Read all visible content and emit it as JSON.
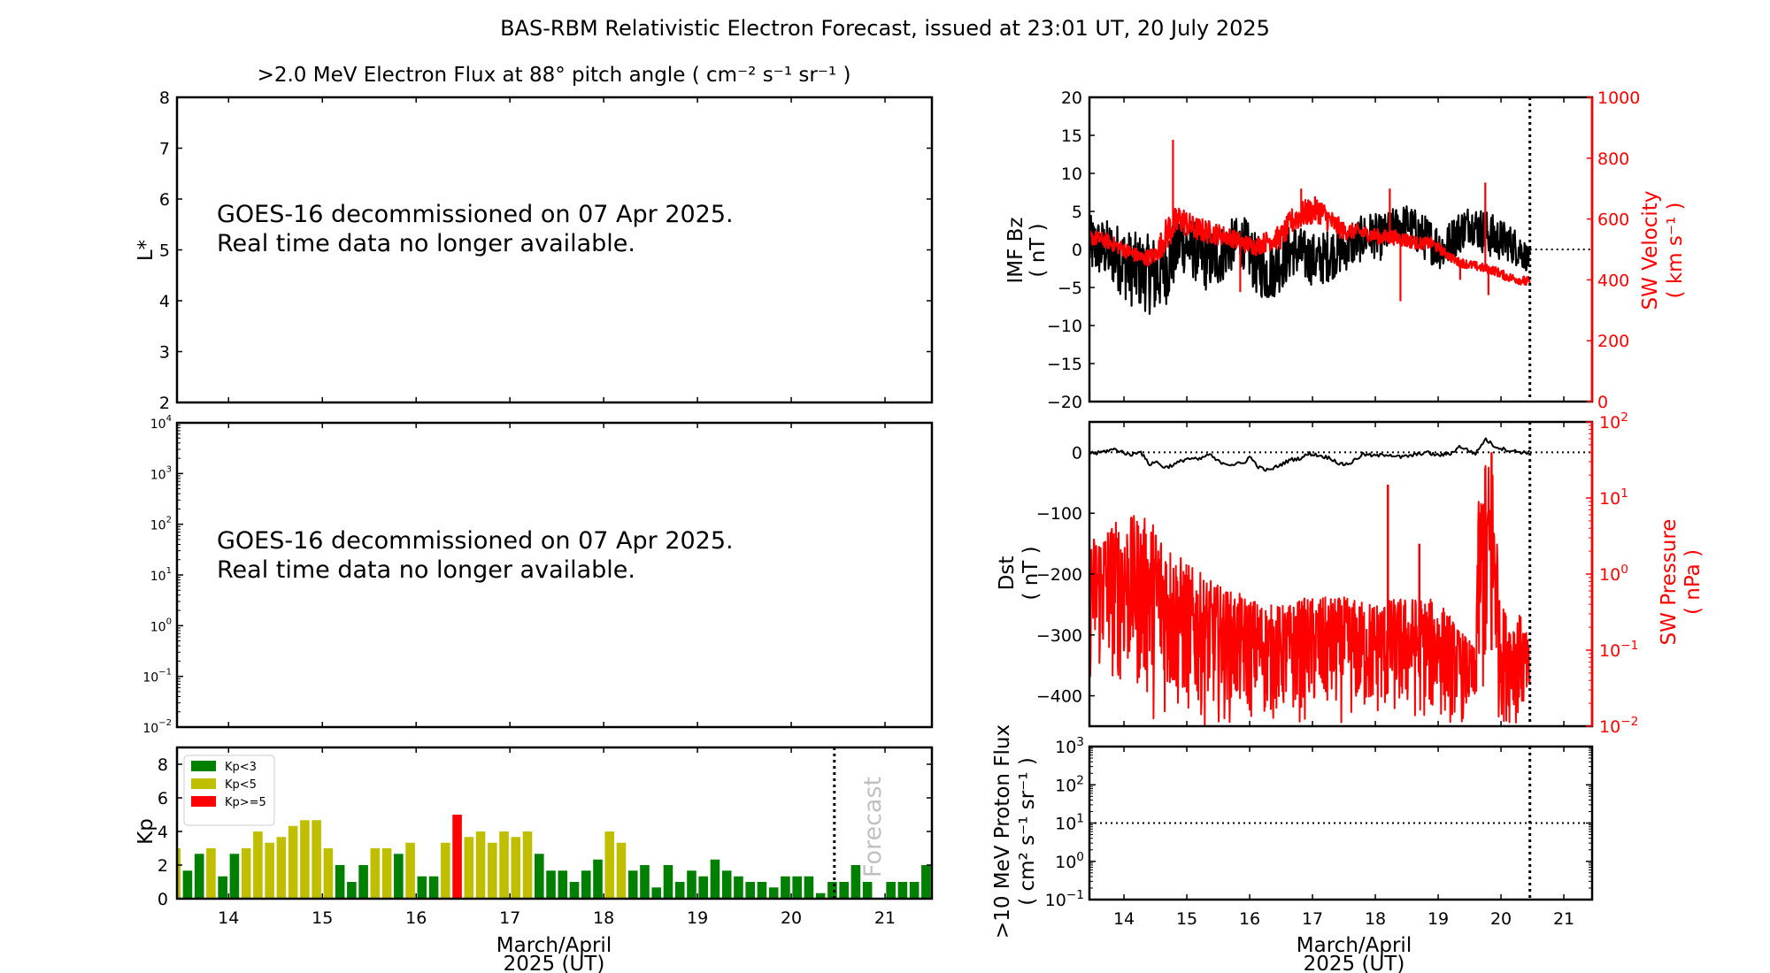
{
  "figure_title": "BAS-RBM Relativistic Electron Forecast, issued at 23:01 UT, 20 July 2025",
  "colors": {
    "kp_low": "#008000",
    "kp_mid": "#bfbf00",
    "kp_high": "#ff0000",
    "sw": "#ff0000",
    "forecast_text": "#c0c0c0"
  },
  "chart_data": [
    {
      "id": "lstar",
      "type": "heatmap",
      "title": ">2.0 MeV Electron Flux at 88° pitch angle ( cm⁻² s⁻¹ sr⁻¹ )",
      "ylabel": "L*",
      "xlim": [
        13.45,
        21.5
      ],
      "ylim": [
        2,
        8
      ],
      "yticks": [
        2,
        3,
        4,
        5,
        6,
        7,
        8
      ],
      "xticks": [
        14,
        15,
        16,
        17,
        18,
        19,
        20,
        21
      ],
      "message": [
        "GOES-16 decommissioned on 07 Apr 2025.",
        "Real time data no longer available."
      ]
    },
    {
      "id": "flux",
      "type": "line",
      "yscale": "log",
      "xlim": [
        13.45,
        21.5
      ],
      "ylim": [
        0.01,
        10000
      ],
      "ytick_labels": [
        [
          "10",
          "−2"
        ],
        [
          "10",
          "−1"
        ],
        [
          "10",
          "0"
        ],
        [
          "10",
          "1"
        ],
        [
          "10",
          "2"
        ],
        [
          "10",
          "3"
        ],
        [
          "10",
          "4"
        ]
      ],
      "xticks": [
        14,
        15,
        16,
        17,
        18,
        19,
        20,
        21
      ],
      "message": [
        "GOES-16 decommissioned on 07 Apr 2025.",
        "Real time data no longer available."
      ]
    },
    {
      "id": "kp",
      "type": "bar",
      "ylabel": "Kp",
      "xlabel": [
        "March/April",
        "2025 (UT)"
      ],
      "xlim": [
        13.45,
        21.5
      ],
      "ylim": [
        0,
        9
      ],
      "yticks": [
        0,
        2,
        4,
        6,
        8
      ],
      "xticks": [
        14,
        15,
        16,
        17,
        18,
        19,
        20,
        21
      ],
      "bin_hours": 3,
      "first_bin_center": 13.4375,
      "values": [
        3,
        1.67,
        2.67,
        3,
        1.33,
        2.67,
        3,
        4,
        3.33,
        3.67,
        4.33,
        4.67,
        4.67,
        3,
        2,
        1,
        2,
        3,
        3,
        2.67,
        3.33,
        1.33,
        1.33,
        3.33,
        5,
        3.67,
        4,
        3.33,
        4,
        3.67,
        4,
        2.67,
        1.67,
        1.67,
        1,
        1.67,
        2.33,
        4,
        3.33,
        1.67,
        2,
        0.67,
        2,
        1,
        1.67,
        1.33,
        2.33,
        1.67,
        1.33,
        1,
        1,
        0.67,
        1.33,
        1.33,
        1.33,
        0.33,
        1,
        1,
        2,
        1,
        0,
        1,
        1,
        1,
        2
      ],
      "legend": [
        {
          "label": "Kp<3",
          "color": "#008000"
        },
        {
          "label": "Kp<5",
          "color": "#bfbf00"
        },
        {
          "label": "Kp>=5",
          "color": "#ff0000"
        }
      ],
      "legend_position": "top-left",
      "forecast_line_x": 20.46,
      "forecast_label": "Forecast"
    },
    {
      "id": "imf",
      "type": "line",
      "ylabel": [
        "IMF Bz",
        "( nT )"
      ],
      "y2label": [
        "SW Velocity",
        "( km s⁻¹ )"
      ],
      "xlim": [
        13.45,
        21.45
      ],
      "ylim": [
        -20,
        20
      ],
      "y2lim": [
        0,
        1000
      ],
      "yticks": [
        -20,
        -15,
        -10,
        -5,
        0,
        5,
        10,
        15,
        20
      ],
      "y2ticks": [
        0,
        200,
        400,
        600,
        800,
        1000
      ],
      "xticks": [
        14,
        15,
        16,
        17,
        18,
        19,
        20,
        21
      ],
      "now_line_x": 20.46,
      "series": [
        {
          "name": "IMF Bz",
          "color": "#000000",
          "axis": "left",
          "x": [
            13.45,
            13.7,
            13.9,
            14.1,
            14.3,
            14.5,
            14.7,
            14.9,
            15.1,
            15.3,
            15.5,
            15.7,
            15.9,
            16.1,
            16.3,
            16.5,
            16.7,
            16.9,
            17.1,
            17.3,
            17.5,
            17.7,
            17.9,
            18.1,
            18.3,
            18.5,
            18.7,
            18.9,
            19.1,
            19.3,
            19.5,
            19.7,
            19.9,
            20.1,
            20.3,
            20.46
          ],
          "mean": [
            0.5,
            0,
            -1,
            -2.5,
            -3,
            -3.5,
            -2,
            1,
            0,
            -1.5,
            -1,
            0.5,
            1,
            -2,
            -3,
            -1.5,
            0,
            -1,
            -1.5,
            -0.5,
            0,
            1,
            2,
            1.5,
            3,
            3.5,
            2,
            1,
            0,
            2,
            3.5,
            2.5,
            1.5,
            1,
            0,
            -1.5
          ],
          "amplitude": [
            4,
            4,
            4.5,
            5,
            5,
            5.5,
            5,
            4,
            4,
            4,
            4,
            3.5,
            3.5,
            4,
            4,
            4,
            3.5,
            3.5,
            3.5,
            3.5,
            3,
            3,
            3,
            3,
            2.5,
            2.5,
            3,
            3,
            3,
            3,
            2.5,
            3,
            3,
            2.5,
            2.5,
            1.5
          ]
        },
        {
          "name": "SW Velocity",
          "color": "#ff0000",
          "axis": "right",
          "x": [
            13.45,
            13.7,
            13.9,
            14.1,
            14.3,
            14.5,
            14.7,
            14.9,
            15.1,
            15.3,
            15.5,
            15.7,
            15.9,
            16.1,
            16.3,
            16.5,
            16.7,
            16.9,
            17.1,
            17.3,
            17.5,
            17.7,
            17.9,
            18.1,
            18.3,
            18.5,
            18.7,
            18.9,
            19.1,
            19.3,
            19.5,
            19.7,
            19.9,
            20.1,
            20.3,
            20.46
          ],
          "mean": [
            540,
            530,
            510,
            490,
            470,
            480,
            560,
            600,
            570,
            560,
            550,
            540,
            520,
            510,
            530,
            540,
            600,
            620,
            630,
            590,
            560,
            560,
            550,
            540,
            540,
            530,
            520,
            520,
            490,
            460,
            450,
            440,
            430,
            410,
            400,
            390
          ],
          "amplitude": [
            25,
            25,
            25,
            25,
            25,
            30,
            60,
            50,
            40,
            40,
            35,
            30,
            30,
            30,
            35,
            40,
            45,
            45,
            45,
            40,
            30,
            25,
            25,
            25,
            25,
            25,
            20,
            20,
            15,
            15,
            15,
            15,
            15,
            15,
            15,
            20
          ],
          "spikes": [
            [
              14.78,
              860
            ],
            [
              15.85,
              360
            ],
            [
              16.82,
              700
            ],
            [
              18.23,
              700
            ],
            [
              18.4,
              330
            ],
            [
              19.35,
              400
            ],
            [
              19.75,
              720
            ],
            [
              19.8,
              350
            ]
          ]
        }
      ]
    },
    {
      "id": "dst",
      "type": "line",
      "ylabel": [
        "Dst",
        "( nT )"
      ],
      "y2label": [
        "SW Pressure",
        "( nPa )"
      ],
      "xlim": [
        13.45,
        21.45
      ],
      "ylim": [
        -450,
        50
      ],
      "y2scale": "log",
      "y2lim": [
        0.01,
        100
      ],
      "yticks": [
        -400,
        -300,
        -200,
        -100,
        0
      ],
      "y2tick_labels": [
        [
          "10",
          "−2"
        ],
        [
          "10",
          "−1"
        ],
        [
          "10",
          "0"
        ],
        [
          "10",
          "1"
        ],
        [
          "10",
          "2"
        ]
      ],
      "xticks": [
        14,
        15,
        16,
        17,
        18,
        19,
        20,
        21
      ],
      "now_line_x": 20.46,
      "series": [
        {
          "name": "Dst",
          "color": "#000000",
          "axis": "left",
          "x": [
            13.45,
            13.55,
            13.7,
            13.85,
            14.0,
            14.1,
            14.25,
            14.4,
            14.5,
            14.65,
            14.8,
            15.0,
            15.2,
            15.35,
            15.5,
            15.7,
            15.9,
            16.0,
            16.15,
            16.3,
            16.5,
            16.65,
            16.8,
            16.95,
            17.1,
            17.3,
            17.45,
            17.6,
            17.8,
            18.0,
            18.2,
            18.4,
            18.6,
            18.8,
            19.0,
            19.2,
            19.35,
            19.5,
            19.6,
            19.75,
            19.9,
            20.05,
            20.2,
            20.35,
            20.46
          ],
          "values": [
            0,
            -2,
            2,
            5,
            0,
            -5,
            3,
            -20,
            -15,
            -25,
            -20,
            -10,
            -12,
            -3,
            -15,
            -20,
            -18,
            -7,
            -25,
            -30,
            -20,
            -12,
            -10,
            -2,
            -5,
            -10,
            -20,
            -18,
            -3,
            -6,
            -3,
            -8,
            -5,
            0,
            -5,
            -2,
            10,
            2,
            -2,
            22,
            10,
            5,
            2,
            0,
            0
          ]
        },
        {
          "name": "SW Pressure",
          "color": "#ff0000",
          "axis": "right",
          "scale": "log",
          "x": [
            13.45,
            13.8,
            14.2,
            14.5,
            14.8,
            15.1,
            15.4,
            15.7,
            16.0,
            16.3,
            16.6,
            16.9,
            17.2,
            17.5,
            17.8,
            18.1,
            18.4,
            18.7,
            19.0,
            19.3,
            19.6,
            19.75,
            19.85,
            19.95,
            20.1,
            20.3,
            20.46
          ],
          "upper": [
            3,
            5,
            6,
            5,
            2,
            1.2,
            0.8,
            0.6,
            0.5,
            0.4,
            0.4,
            0.5,
            0.5,
            0.5,
            0.45,
            0.45,
            0.5,
            0.5,
            0.45,
            0.2,
            0.1,
            30,
            40,
            0.5,
            0.3,
            0.3,
            0.1
          ],
          "lower": [
            0.03,
            0.03,
            0.02,
            0.01,
            0.01,
            0.01,
            0.01,
            0.01,
            0.01,
            0.01,
            0.01,
            0.01,
            0.01,
            0.01,
            0.01,
            0.01,
            0.01,
            0.01,
            0.01,
            0.01,
            0.01,
            0.01,
            0.01,
            0.01,
            0.01,
            0.01,
            0.01
          ],
          "spikes": [
            [
              18.2,
              15
            ],
            [
              19.75,
              25
            ],
            [
              19.85,
              40
            ],
            [
              18.7,
              2.5
            ]
          ]
        }
      ]
    },
    {
      "id": "proton",
      "type": "line",
      "ylabel": [
        ">10 MeV Proton Flux",
        "( cm² s⁻¹ sr⁻¹ )"
      ],
      "xlabel": [
        "March/April",
        "2025 (UT)"
      ],
      "yscale": "log",
      "xlim": [
        13.45,
        21.45
      ],
      "ylim": [
        0.1,
        1000
      ],
      "ytick_labels": [
        [
          "10",
          "−1"
        ],
        [
          "10",
          "0"
        ],
        [
          "10",
          "1"
        ],
        [
          "10",
          "2"
        ],
        [
          "10",
          "3"
        ]
      ],
      "xticks": [
        14,
        15,
        16,
        17,
        18,
        19,
        20,
        21
      ],
      "threshold": 10,
      "now_line_x": 20.46,
      "series": []
    }
  ]
}
